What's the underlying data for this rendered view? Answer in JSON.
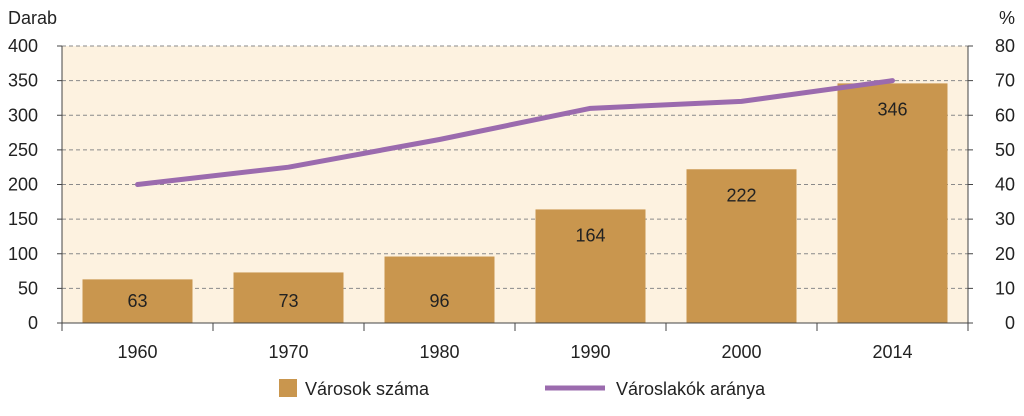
{
  "chart_data": {
    "type": "bar",
    "categories": [
      "1960",
      "1970",
      "1980",
      "1990",
      "2000",
      "2014"
    ],
    "series": [
      {
        "name": "Városok száma",
        "type": "bar",
        "axis": "left",
        "color": "#C9964E",
        "values": [
          63,
          73,
          96,
          164,
          222,
          346
        ],
        "data_labels": [
          "63",
          "73",
          "96",
          "164",
          "222",
          "346"
        ]
      },
      {
        "name": "Városlakók aránya",
        "type": "line",
        "axis": "right",
        "color": "#9B6BAE",
        "values": [
          40,
          45,
          53,
          62,
          64,
          70
        ]
      }
    ],
    "y_left": {
      "label": "Darab",
      "ylim": [
        0,
        400
      ],
      "ticks": [
        "0",
        "50",
        "100",
        "150",
        "200",
        "250",
        "300",
        "350",
        "400"
      ]
    },
    "y_right": {
      "label": "%",
      "ylim": [
        0,
        80
      ],
      "ticks": [
        "0",
        "10",
        "20",
        "30",
        "40",
        "50",
        "60",
        "70",
        "80"
      ]
    },
    "grid": true,
    "plot_background": "#FDF2E0",
    "legend_position": "bottom"
  }
}
